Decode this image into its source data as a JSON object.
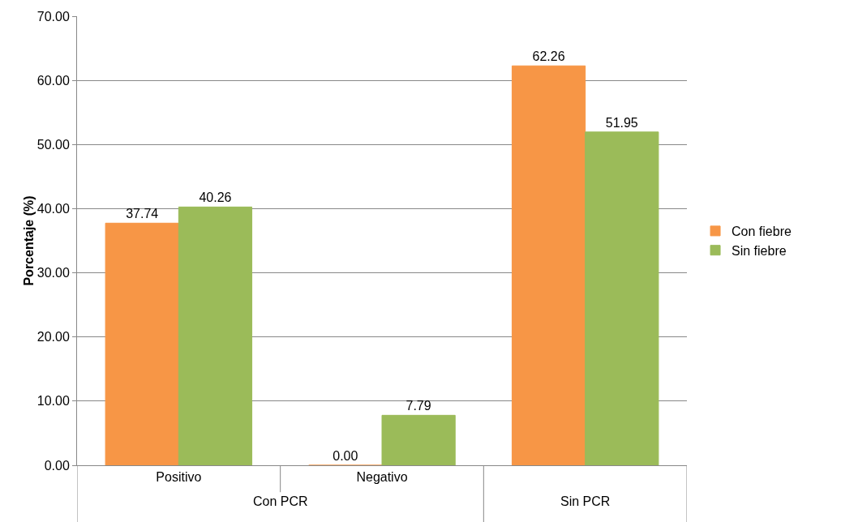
{
  "chart_data": {
    "type": "bar",
    "ylabel": "Porcentaje (%)",
    "categories": [
      "Positivo",
      "Negativo",
      null
    ],
    "series": [
      {
        "name": "Con fiebre",
        "color": "#f79646",
        "values": [
          37.74,
          0.0,
          62.26
        ],
        "value_labels": [
          "37.74",
          "0.00",
          "62.26"
        ]
      },
      {
        "name": "Sin fiebre",
        "color": "#9bbb59",
        "values": [
          40.26,
          7.79,
          51.95
        ],
        "value_labels": [
          "40.26",
          "7.79",
          "51.95"
        ]
      }
    ],
    "ylim": [
      0,
      70
    ],
    "yticks": [
      {
        "value": 0,
        "label": "0.00"
      },
      {
        "value": 10,
        "label": "10.00"
      },
      {
        "value": 20,
        "label": "20.00"
      },
      {
        "value": 30,
        "label": "30.00"
      },
      {
        "value": 40,
        "label": "40.00"
      },
      {
        "value": 50,
        "label": "50.00"
      },
      {
        "value": 60,
        "label": "60.00"
      },
      {
        "value": 70,
        "label": "70.00"
      }
    ],
    "annotations": [
      "Con PCR",
      "Sin PCR"
    ],
    "grid": "y",
    "legend": "right"
  }
}
